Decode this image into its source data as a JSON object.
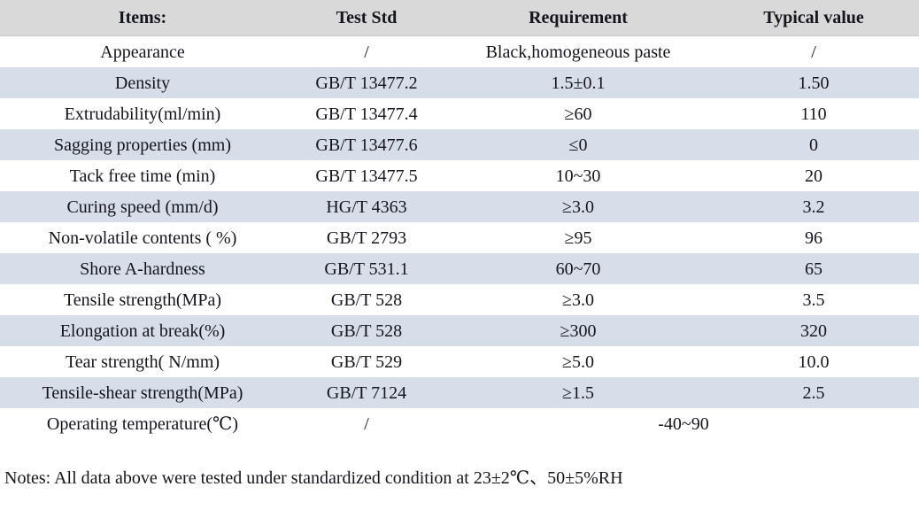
{
  "table": {
    "headers": [
      "Items:",
      "Test Std",
      "Requirement",
      "Typical value"
    ],
    "rows": [
      {
        "item": "Appearance",
        "test_std": "/",
        "requirement": "Black,homogeneous paste",
        "typical_value": "/"
      },
      {
        "item": "Density",
        "test_std": "GB/T 13477.2",
        "requirement": "1.5±0.1",
        "typical_value": "1.50"
      },
      {
        "item": "Extrudability(ml/min)",
        "test_std": "GB/T 13477.4",
        "requirement": "≥60",
        "typical_value": "110"
      },
      {
        "item": "Sagging properties (mm)",
        "test_std": "GB/T 13477.6",
        "requirement": "≤0",
        "typical_value": "0"
      },
      {
        "item": "Tack free time (min)",
        "test_std": "GB/T 13477.5",
        "requirement": "10~30",
        "typical_value": "20"
      },
      {
        "item": "Curing speed (mm/d)",
        "test_std": "HG/T 4363",
        "requirement": "≥3.0",
        "typical_value": "3.2"
      },
      {
        "item": "Non-volatile contents ( %)",
        "test_std": "GB/T 2793",
        "requirement": "≥95",
        "typical_value": "96"
      },
      {
        "item": "Shore A-hardness",
        "test_std": "GB/T 531.1",
        "requirement": "60~70",
        "typical_value": "65"
      },
      {
        "item": "Tensile strength(MPa)",
        "test_std": "GB/T 528",
        "requirement": "≥3.0",
        "typical_value": "3.5"
      },
      {
        "item": "Elongation at break(%)",
        "test_std": "GB/T 528",
        "requirement": "≥300",
        "typical_value": "320"
      },
      {
        "item": "Tear strength( N/mm)",
        "test_std": "GB/T 529",
        "requirement": "≥5.0",
        "typical_value": "10.0"
      },
      {
        "item": "Tensile-shear strength(MPa)",
        "test_std": "GB/T 7124",
        "requirement": "≥1.5",
        "typical_value": "2.5"
      },
      {
        "item": "Operating temperature(℃)",
        "test_std": "/",
        "requirement": "-40~90"
      }
    ]
  },
  "notes": "Notes: All data above were tested under standardized condition at 23±2℃、50±5%RH",
  "colors": {
    "header_bg": "#d9d9d9",
    "stripe_bg": "#d7dde9",
    "text": "#15151e"
  }
}
